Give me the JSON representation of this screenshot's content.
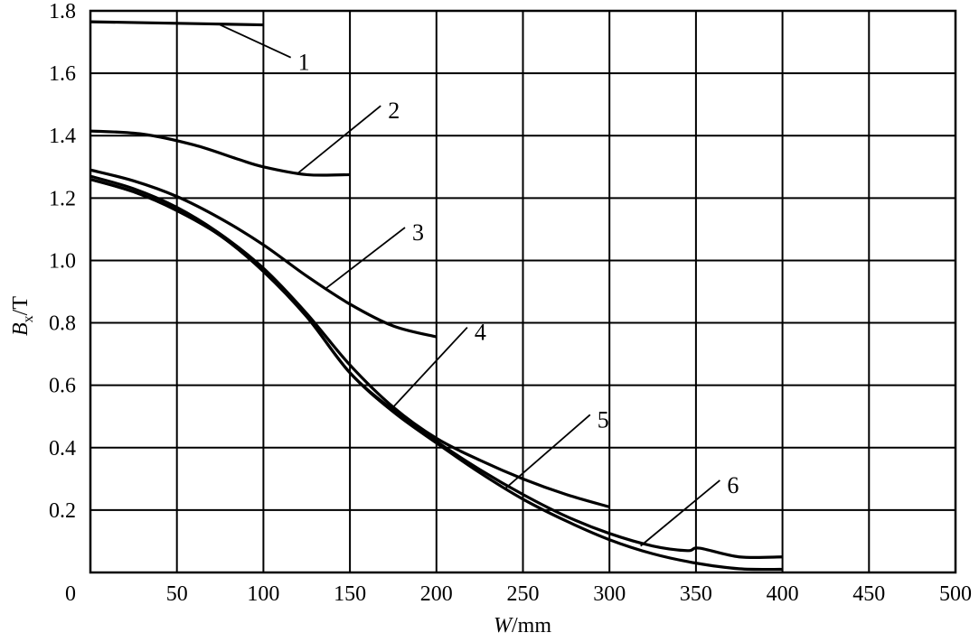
{
  "chart_data": {
    "type": "line",
    "title": "",
    "xlabel_italic": "W",
    "xlabel_rest": "/mm",
    "ylabel_italic": "B",
    "ylabel_sub": "x",
    "ylabel_rest": "/T",
    "xlim": [
      0,
      500
    ],
    "ylim": [
      0,
      1.8
    ],
    "grid": true,
    "x_ticks": [
      0,
      50,
      100,
      150,
      200,
      250,
      300,
      350,
      400,
      450,
      500
    ],
    "x_tick_labels": [
      "0",
      "50",
      "100",
      "150",
      "200",
      "250",
      "300",
      "350",
      "400",
      "450",
      "500"
    ],
    "y_ticks": [
      0.2,
      0.4,
      0.6,
      0.8,
      1.0,
      1.2,
      1.4,
      1.6,
      1.8
    ],
    "y_tick_labels": [
      "0.2",
      "0.4",
      "0.6",
      "0.8",
      "1.0",
      "1.2",
      "1.4",
      "1.6",
      "1.8"
    ],
    "series": [
      {
        "name": "1",
        "x": [
          0,
          50,
          100
        ],
        "y": [
          1.765,
          1.76,
          1.755
        ],
        "label_at": [
          120,
          1.61
        ],
        "leader_to": [
          75,
          1.755
        ]
      },
      {
        "name": "2",
        "x": [
          0,
          30,
          60,
          85,
          100,
          125,
          150
        ],
        "y": [
          1.415,
          1.405,
          1.37,
          1.325,
          1.3,
          1.275,
          1.275
        ],
        "label_at": [
          172,
          1.455
        ],
        "leader_to": [
          120,
          1.28
        ]
      },
      {
        "name": "3",
        "x": [
          0,
          25,
          50,
          75,
          100,
          125,
          150,
          175,
          200
        ],
        "y": [
          1.29,
          1.255,
          1.205,
          1.135,
          1.05,
          0.95,
          0.86,
          0.79,
          0.755
        ],
        "label_at": [
          186,
          1.065
        ],
        "leader_to": [
          136,
          0.91
        ]
      },
      {
        "name": "4",
        "x": [
          0,
          25,
          50,
          75,
          100,
          125,
          150,
          175,
          200,
          225,
          250,
          275,
          300
        ],
        "y": [
          1.27,
          1.23,
          1.17,
          1.085,
          0.975,
          0.83,
          0.665,
          0.53,
          0.43,
          0.36,
          0.3,
          0.25,
          0.21
        ],
        "label_at": [
          222,
          0.745
        ],
        "leader_to": [
          175,
          0.53
        ]
      },
      {
        "name": "5",
        "x": [
          0,
          25,
          50,
          75,
          100,
          125,
          150,
          175,
          200,
          225,
          250,
          275,
          300,
          325,
          350,
          375,
          400
        ],
        "y": [
          1.26,
          1.22,
          1.16,
          1.08,
          0.965,
          0.82,
          0.64,
          0.515,
          0.415,
          0.32,
          0.235,
          0.165,
          0.105,
          0.06,
          0.03,
          0.012,
          0.01
        ],
        "label_at": [
          293,
          0.465
        ],
        "leader_to": [
          240,
          0.27
        ]
      },
      {
        "name": "6",
        "x": [
          0,
          25,
          50,
          75,
          100,
          125,
          150,
          175,
          200,
          225,
          250,
          275,
          300,
          325,
          345,
          352,
          375,
          400
        ],
        "y": [
          1.26,
          1.22,
          1.16,
          1.08,
          0.965,
          0.82,
          0.64,
          0.52,
          0.42,
          0.33,
          0.25,
          0.18,
          0.125,
          0.085,
          0.07,
          0.078,
          0.05,
          0.05
        ],
        "label_at": [
          368,
          0.255
        ],
        "leader_to": [
          318,
          0.085
        ]
      }
    ]
  }
}
